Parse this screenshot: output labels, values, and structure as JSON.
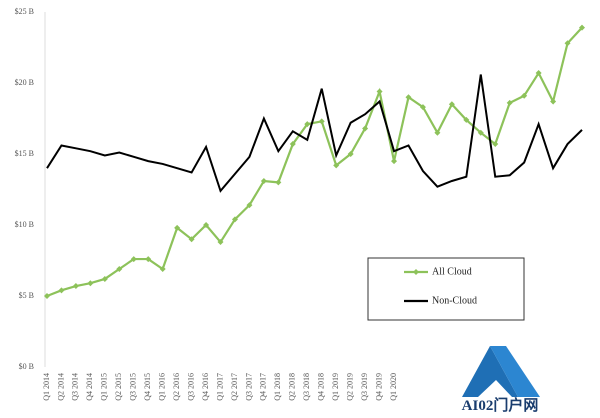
{
  "chart_data": {
    "type": "line",
    "categories": [
      "Q1 2014",
      "Q2 2014",
      "Q3 2014",
      "Q4 2014",
      "Q1 2015",
      "Q2 2015",
      "Q3 2015",
      "Q4 2015",
      "Q1 2016",
      "Q2 2016",
      "Q3 2016",
      "Q4 2016",
      "Q1 2017",
      "Q2 2017",
      "Q3 2017",
      "Q4 2017",
      "Q1 2018",
      "Q2 2018",
      "Q3 2018",
      "Q4 2018",
      "Q1 2019",
      "Q2 2019",
      "Q3 2019",
      "Q4 2019",
      "Q1 2020",
      null,
      null,
      null,
      null,
      null,
      null,
      null,
      null,
      null,
      null,
      null,
      null,
      null
    ],
    "series": [
      {
        "name": "All Cloud",
        "color": "#8dc25a",
        "marker": true,
        "values": [
          5.0,
          5.4,
          5.7,
          5.9,
          6.2,
          6.9,
          7.6,
          7.6,
          6.9,
          9.8,
          9.0,
          10.0,
          8.8,
          10.4,
          11.4,
          13.1,
          13.0,
          15.7,
          17.1,
          17.3,
          14.2,
          15.0,
          16.8,
          19.4,
          14.5,
          19.0,
          18.3,
          16.5,
          18.5,
          17.4,
          16.5,
          15.7,
          18.6,
          19.1,
          20.7,
          18.7,
          22.8,
          23.9
        ]
      },
      {
        "name": "Non-Cloud",
        "color": "#000000",
        "marker": false,
        "values": [
          14.0,
          15.6,
          15.4,
          15.2,
          14.9,
          15.1,
          14.8,
          14.5,
          14.3,
          14.0,
          13.7,
          15.5,
          12.4,
          13.6,
          14.8,
          17.5,
          15.2,
          16.6,
          16.0,
          19.6,
          14.9,
          17.2,
          17.8,
          18.7,
          15.2,
          15.6,
          13.8,
          12.7,
          13.1,
          13.4,
          20.6,
          13.4,
          13.5,
          14.4,
          17.1,
          14.0,
          15.7,
          16.7
        ]
      }
    ],
    "ylim": [
      0,
      25
    ],
    "yticks": [
      {
        "value": 0,
        "label": "$0 B"
      },
      {
        "value": 5,
        "label": "$5 B"
      },
      {
        "value": 10,
        "label": "$10 B"
      },
      {
        "value": 15,
        "label": "$15 B"
      },
      {
        "value": 20,
        "label": "$20 B"
      },
      {
        "value": 25,
        "label": "$25 B"
      }
    ],
    "watermark": "AI02门户网"
  }
}
